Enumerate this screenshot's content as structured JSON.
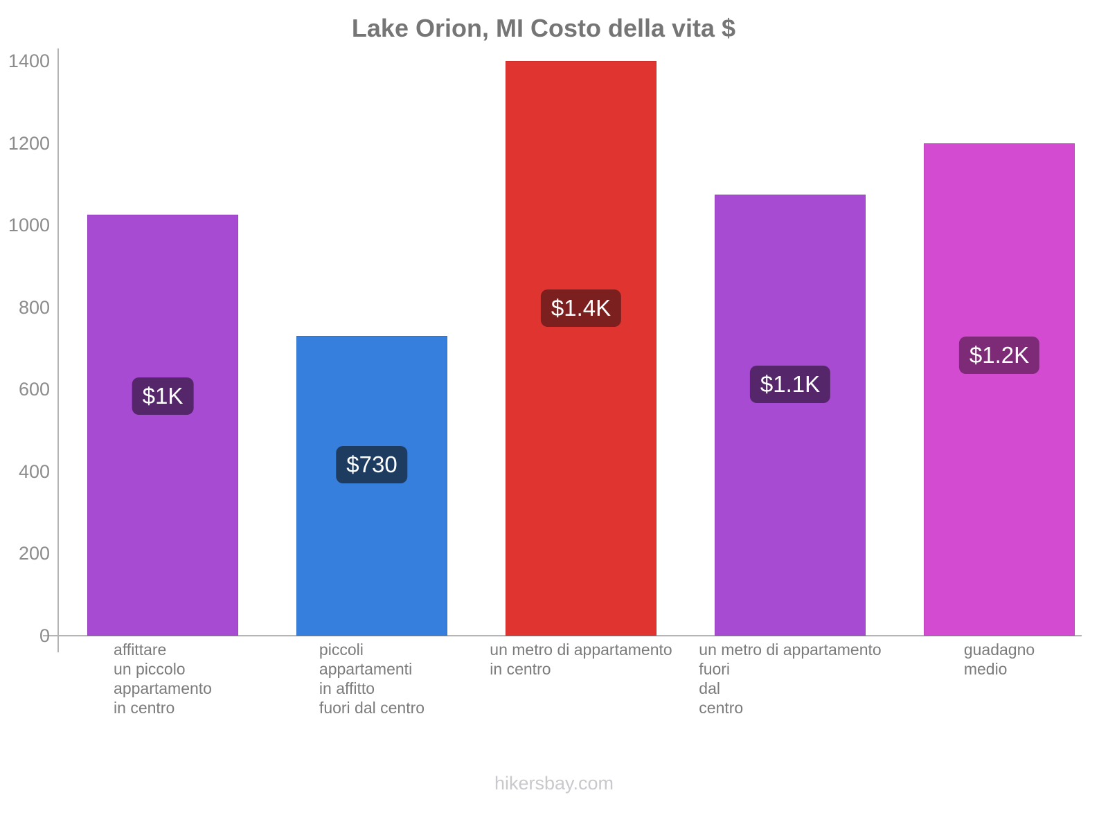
{
  "footer": "hikersbay.com",
  "chart_data": {
    "type": "bar",
    "title": "Lake Orion, MI Costo della vita $",
    "categories": [
      "affittare un piccolo appartamento in centro",
      "piccoli appartamenti in affitto fuori dal centro",
      "un metro di appartamento in centro",
      "un metro di appartamento fuori dal centro",
      "guadagno medio"
    ],
    "category_lines": [
      [
        "affittare",
        "un piccolo",
        "appartamento",
        "in centro"
      ],
      [
        "piccoli",
        "appartamenti",
        "in affitto",
        "fuori dal centro"
      ],
      [
        "un metro di appartamento",
        "in centro"
      ],
      [
        "un metro di appartamento",
        "fuori",
        "dal",
        "centro"
      ],
      [
        "guadagno",
        "medio"
      ]
    ],
    "values": [
      1025,
      730,
      1400,
      1075,
      1200
    ],
    "value_labels": [
      "$1K",
      "$730",
      "$1.4K",
      "$1.1K",
      "$1.2K"
    ],
    "bar_colors": [
      "#a74bd3",
      "#377fdc",
      "#e03431",
      "#a74bd3",
      "#d24bd0"
    ],
    "badge_colors": [
      "#55276a",
      "#1e3c5f",
      "#7b201e",
      "#55276a",
      "#7d2a77"
    ],
    "xlabel": "",
    "ylabel": "",
    "ylim": [
      0,
      1400
    ],
    "yticks": [
      0,
      200,
      400,
      600,
      800,
      1000,
      1200,
      1400
    ],
    "grid": "off",
    "legend": "none"
  }
}
